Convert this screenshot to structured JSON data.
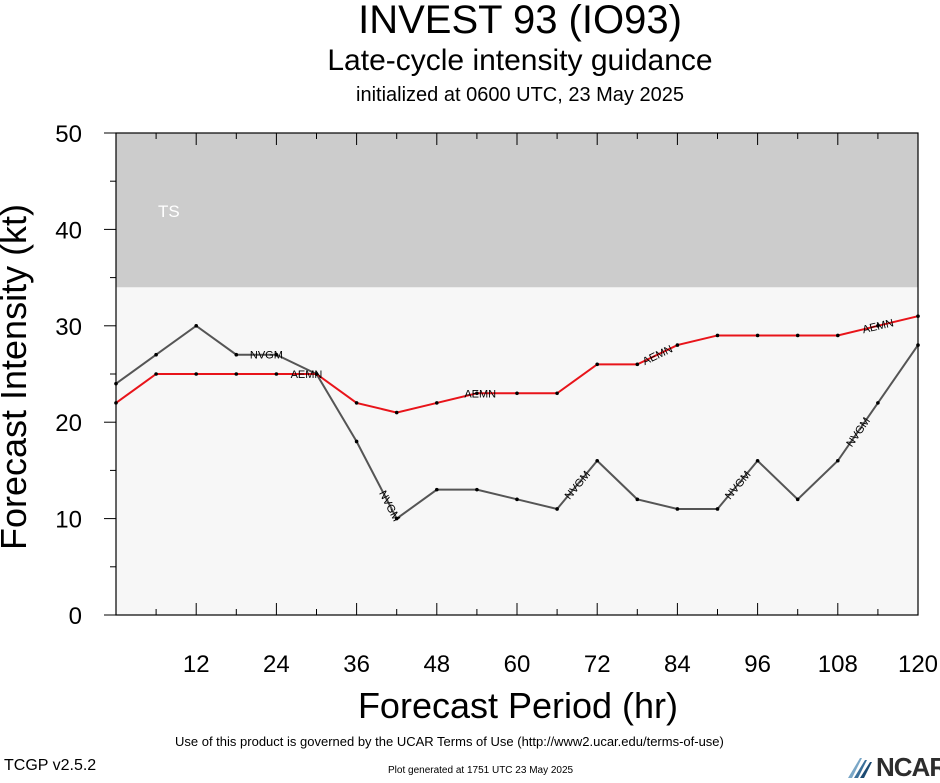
{
  "title": "INVEST 93 (IO93)",
  "subtitle": "Late-cycle intensity guidance",
  "subtitle2": "initialized at 0600 UTC, 23 May 2025",
  "footer": {
    "terms": "Use of this product is governed by the UCAR Terms of Use (http://www2.ucar.edu/terms-of-use)",
    "generated": "Plot generated at 1751 UTC   23 May 2025",
    "version": "TCGP v2.5.2",
    "logo_text": "NCAR"
  },
  "chart_data": {
    "type": "line",
    "xlabel": "Forecast Period (hr)",
    "ylabel": "Forecast Intensity (kt)",
    "xlim": [
      0,
      120
    ],
    "ylim": [
      0,
      50
    ],
    "xticks": [
      12,
      24,
      36,
      48,
      60,
      72,
      84,
      96,
      108,
      120
    ],
    "yticks": [
      0,
      10,
      20,
      30,
      40,
      50
    ],
    "bands": [
      {
        "label": "TS",
        "from": 34,
        "to": 50,
        "color": "#cccccc"
      }
    ],
    "background_color": "#f7f7f7",
    "series": [
      {
        "name": "AEMN",
        "color": "#e8141a",
        "x": [
          0,
          6,
          12,
          18,
          24,
          30,
          36,
          42,
          48,
          54,
          60,
          66,
          72,
          78,
          84,
          90,
          96,
          102,
          108,
          114,
          120
        ],
        "values": [
          22,
          25,
          25,
          25,
          25,
          25,
          22,
          21,
          22,
          23,
          23,
          23,
          26,
          26,
          28,
          29,
          29,
          29,
          29,
          30,
          31
        ]
      },
      {
        "name": "NVGM",
        "color": "#555555",
        "x": [
          0,
          6,
          12,
          18,
          24,
          30,
          36,
          42,
          48,
          54,
          60,
          66,
          72,
          78,
          84,
          90,
          96,
          102,
          108,
          114,
          120
        ],
        "values": [
          24,
          27,
          30,
          27,
          27,
          25,
          18,
          10,
          13,
          13,
          12,
          11,
          16,
          12,
          11,
          11,
          16,
          12,
          16,
          22,
          28
        ]
      }
    ],
    "line_labels": [
      {
        "series": "NVGM",
        "text": "NVGM",
        "x": 22.5
      },
      {
        "series": "AEMN",
        "text": "AEMN",
        "x": 28.5
      },
      {
        "series": "NVGM",
        "text": "NVGM",
        "x": 41
      },
      {
        "series": "AEMN",
        "text": "AEMN",
        "x": 54.5
      },
      {
        "series": "NVGM",
        "text": "NVGM",
        "x": 69
      },
      {
        "series": "AEMN",
        "text": "AEMN",
        "x": 81
      },
      {
        "series": "NVGM",
        "text": "NVGM",
        "x": 93
      },
      {
        "series": "NVGM",
        "text": "NVGM",
        "x": 111
      },
      {
        "series": "AEMN",
        "text": "AEMN",
        "x": 114
      }
    ]
  }
}
